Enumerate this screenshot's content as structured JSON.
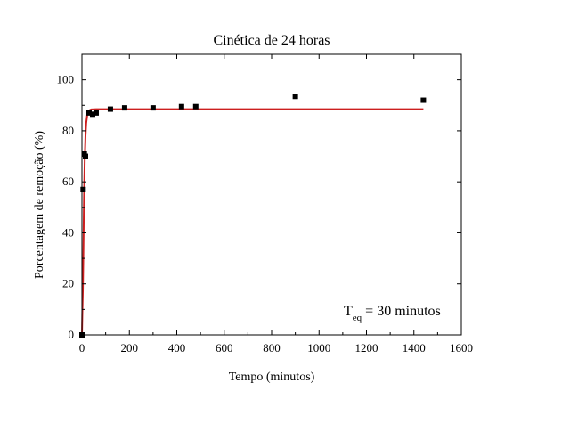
{
  "chart_data": {
    "type": "scatter",
    "title": "Cinética de 24 horas",
    "xlabel": "Tempo (minutos)",
    "ylabel": "Porcentagem de remoção (%)",
    "xlim": [
      0,
      1600
    ],
    "ylim": [
      0,
      110
    ],
    "x_ticks": [
      0,
      200,
      400,
      600,
      800,
      1000,
      1200,
      1400,
      1600
    ],
    "y_ticks": [
      0,
      20,
      40,
      60,
      80,
      100
    ],
    "grid": false,
    "series": [
      {
        "type": "scatter",
        "marker": "square",
        "color": "#000000",
        "x": [
          0,
          5,
          10,
          15,
          30,
          45,
          60,
          120,
          180,
          300,
          420,
          480,
          900,
          1440
        ],
        "y": [
          0,
          57,
          71,
          70,
          87,
          86.5,
          87,
          88.5,
          89,
          89,
          89.5,
          89.5,
          93.5,
          92
        ]
      },
      {
        "type": "line",
        "color": "#cc1f1f",
        "x": [
          0,
          2,
          4,
          6,
          8,
          10,
          12,
          15,
          18,
          22,
          26,
          30,
          40,
          60,
          100,
          200,
          400,
          800,
          1440
        ],
        "y": [
          0,
          10,
          18,
          32,
          48,
          60,
          69,
          78,
          83,
          86,
          87.5,
          88,
          88.4,
          88.5,
          88.5,
          88.5,
          88.5,
          88.5,
          88.5
        ]
      }
    ],
    "annotation": {
      "main": "T",
      "sub": "eq",
      "rest": " = 30 minutos"
    }
  }
}
